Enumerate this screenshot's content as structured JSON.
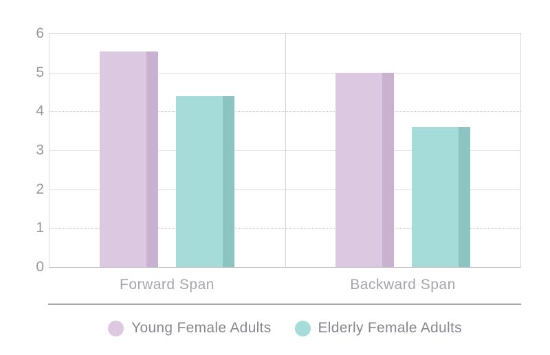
{
  "chart_data": {
    "type": "bar",
    "title": "",
    "categories": [
      "Forward Span",
      "Backward Span"
    ],
    "series": [
      {
        "name": "Young Female Adults",
        "color_light": "#dcc8e1",
        "color_dark": "#c9b2cf",
        "values": [
          5.55,
          5.0
        ]
      },
      {
        "name": "Elderly Female Adults",
        "color_light": "#a5dcd9",
        "color_dark": "#8cc4c2",
        "values": [
          4.4,
          3.6
        ]
      }
    ],
    "xlabel": "",
    "ylabel": "",
    "ylim": [
      0,
      6
    ],
    "yticks": [
      0,
      1,
      2,
      3,
      4,
      5,
      6
    ],
    "gridlines_solid": [
      5,
      3,
      2
    ],
    "gridlines_dotted": [
      4,
      1
    ],
    "grid": "on",
    "panel_divider": true,
    "legend_position": "bottom"
  },
  "legend": {
    "items": [
      {
        "label": "Young Female Adults",
        "color": "#dcc8e1"
      },
      {
        "label": "Elderly Female Adults",
        "color": "#a5dcd9"
      }
    ]
  },
  "colors": {
    "series_pink": "#dcc8e1",
    "series_pink_shade": "#c9b2cf",
    "series_teal": "#a5dcd9",
    "series_teal_shade": "#8cc4c2",
    "axis_text": "#98989f",
    "category_text": "#a9a3ad",
    "legend_text": "#87878f",
    "gridline": "#dcdce0",
    "separator": "#a7a7ad"
  }
}
